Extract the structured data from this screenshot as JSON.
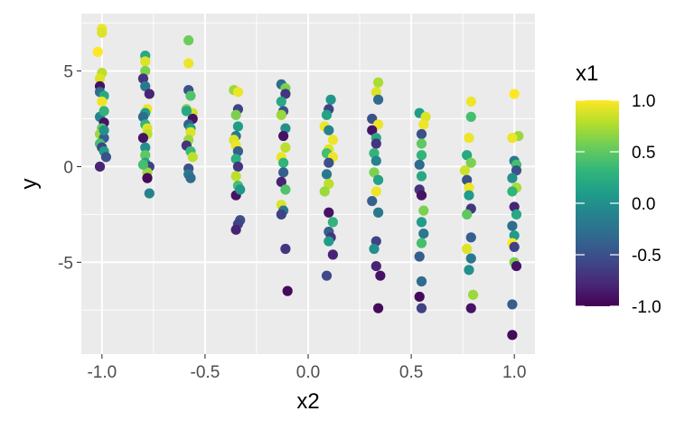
{
  "chart_data": {
    "type": "scatter",
    "xlabel": "x2",
    "ylabel": "y",
    "xlim": [
      -1.1,
      1.1
    ],
    "ylim": [
      -9.8,
      8.0
    ],
    "xticks": [
      -1.0,
      -0.5,
      0.0,
      0.5,
      1.0
    ],
    "xtick_labels": [
      "-1.0",
      "-0.5",
      "0.0",
      "0.5",
      "1.0"
    ],
    "yticks": [
      -5,
      0,
      5
    ],
    "ytick_labels": [
      "-5",
      "0",
      "5"
    ],
    "grid": true,
    "panel_background": "#ebebeb",
    "color_scale": {
      "variable": "x1",
      "palette": "viridis",
      "range": [
        -1.0,
        1.0
      ],
      "breaks": [
        1.0,
        0.5,
        0.0,
        -0.5,
        -1.0
      ],
      "break_labels": [
        "1.0",
        "0.5",
        "0.0",
        "-0.5",
        "-1.0"
      ],
      "legend_position": "right"
    },
    "points": [
      {
        "x": -1.0,
        "y": 7.2,
        "c": 0.95
      },
      {
        "x": -1.0,
        "y": 7.0,
        "c": 0.9
      },
      {
        "x": -1.02,
        "y": 6.0,
        "c": 1.0
      },
      {
        "x": -1.0,
        "y": 4.9,
        "c": 0.8
      },
      {
        "x": -1.01,
        "y": 4.6,
        "c": 0.9
      },
      {
        "x": -1.01,
        "y": 4.2,
        "c": -0.9
      },
      {
        "x": -1.01,
        "y": 3.9,
        "c": -0.3
      },
      {
        "x": -0.99,
        "y": 3.7,
        "c": 0.2
      },
      {
        "x": -1.0,
        "y": 3.4,
        "c": 0.95
      },
      {
        "x": -1.01,
        "y": 2.6,
        "c": -0.1
      },
      {
        "x": -0.99,
        "y": 2.9,
        "c": 0.3
      },
      {
        "x": -0.99,
        "y": 2.3,
        "c": -0.9
      },
      {
        "x": -1.0,
        "y": 2.0,
        "c": 0.5
      },
      {
        "x": -1.01,
        "y": 1.7,
        "c": 0.7
      },
      {
        "x": -0.99,
        "y": 1.5,
        "c": -0.4
      },
      {
        "x": -1.01,
        "y": 1.2,
        "c": 0.4
      },
      {
        "x": -1.0,
        "y": 1.0,
        "c": -0.6
      },
      {
        "x": -0.99,
        "y": 0.8,
        "c": 0.1
      },
      {
        "x": -0.98,
        "y": 0.5,
        "c": -0.5
      },
      {
        "x": -1.01,
        "y": 0.0,
        "c": -0.8
      },
      {
        "x": -0.99,
        "y": 1.9,
        "c": 0.0
      },
      {
        "x": -0.79,
        "y": 5.8,
        "c": 0.2
      },
      {
        "x": -0.79,
        "y": 5.5,
        "c": 0.9
      },
      {
        "x": -0.79,
        "y": 5.0,
        "c": 0.6
      },
      {
        "x": -0.8,
        "y": 4.6,
        "c": -0.7
      },
      {
        "x": -0.79,
        "y": 4.2,
        "c": -0.2
      },
      {
        "x": -0.77,
        "y": 3.8,
        "c": -0.8
      },
      {
        "x": -0.78,
        "y": 3.0,
        "c": 0.95
      },
      {
        "x": -0.79,
        "y": 2.8,
        "c": 0.1
      },
      {
        "x": -0.8,
        "y": 2.6,
        "c": -0.3
      },
      {
        "x": -0.79,
        "y": 2.2,
        "c": 0.3
      },
      {
        "x": -0.78,
        "y": 2.0,
        "c": 0.9
      },
      {
        "x": -0.78,
        "y": 1.7,
        "c": 0.8
      },
      {
        "x": -0.8,
        "y": 1.5,
        "c": -0.9
      },
      {
        "x": -0.79,
        "y": 1.0,
        "c": 0.0
      },
      {
        "x": -0.79,
        "y": 0.6,
        "c": 0.5
      },
      {
        "x": -0.79,
        "y": 0.2,
        "c": 0.15
      },
      {
        "x": -0.77,
        "y": 0.0,
        "c": -0.6
      },
      {
        "x": -0.78,
        "y": -0.3,
        "c": 0.7
      },
      {
        "x": -0.78,
        "y": -0.6,
        "c": -0.95
      },
      {
        "x": -0.77,
        "y": -1.4,
        "c": -0.1
      },
      {
        "x": -0.8,
        "y": 0.1,
        "c": 0.4
      },
      {
        "x": -0.58,
        "y": 6.6,
        "c": 0.55
      },
      {
        "x": -0.58,
        "y": 5.4,
        "c": 0.95
      },
      {
        "x": -0.58,
        "y": 4.0,
        "c": -0.5
      },
      {
        "x": -0.57,
        "y": 3.7,
        "c": 0.45
      },
      {
        "x": -0.59,
        "y": 3.0,
        "c": 0.6
      },
      {
        "x": -0.56,
        "y": 2.8,
        "c": 0.85
      },
      {
        "x": -0.56,
        "y": 2.5,
        "c": -0.9
      },
      {
        "x": -0.58,
        "y": 2.2,
        "c": -0.4
      },
      {
        "x": -0.57,
        "y": 2.0,
        "c": 0.1
      },
      {
        "x": -0.57,
        "y": 1.8,
        "c": 0.9
      },
      {
        "x": -0.58,
        "y": 1.4,
        "c": 0.7
      },
      {
        "x": -0.59,
        "y": 1.1,
        "c": -0.7
      },
      {
        "x": -0.57,
        "y": 0.8,
        "c": 0.35
      },
      {
        "x": -0.56,
        "y": 0.5,
        "c": 0.8
      },
      {
        "x": -0.58,
        "y": -0.1,
        "c": -0.5
      },
      {
        "x": -0.58,
        "y": -0.4,
        "c": -0.2
      },
      {
        "x": -0.57,
        "y": -0.6,
        "c": -0.3
      },
      {
        "x": -0.59,
        "y": 2.9,
        "c": 0.2
      },
      {
        "x": -0.36,
        "y": 4.0,
        "c": 0.7
      },
      {
        "x": -0.34,
        "y": 3.9,
        "c": 0.95
      },
      {
        "x": -0.34,
        "y": 3.0,
        "c": -0.6
      },
      {
        "x": -0.35,
        "y": 2.7,
        "c": 0.6
      },
      {
        "x": -0.34,
        "y": 2.1,
        "c": 0.1
      },
      {
        "x": -0.35,
        "y": 1.6,
        "c": -0.2
      },
      {
        "x": -0.36,
        "y": 1.4,
        "c": 0.9
      },
      {
        "x": -0.35,
        "y": 1.1,
        "c": 0.95
      },
      {
        "x": -0.34,
        "y": 0.8,
        "c": -0.4
      },
      {
        "x": -0.35,
        "y": 0.4,
        "c": 0.25
      },
      {
        "x": -0.34,
        "y": 0.0,
        "c": -0.7
      },
      {
        "x": -0.35,
        "y": -0.5,
        "c": 0.8
      },
      {
        "x": -0.34,
        "y": -1.0,
        "c": 0.4
      },
      {
        "x": -0.35,
        "y": -1.5,
        "c": -0.9
      },
      {
        "x": -0.33,
        "y": -1.2,
        "c": 0.05
      },
      {
        "x": -0.33,
        "y": -2.8,
        "c": -0.5
      },
      {
        "x": -0.34,
        "y": -3.0,
        "c": -0.6
      },
      {
        "x": -0.35,
        "y": -3.3,
        "c": -0.8
      },
      {
        "x": -0.13,
        "y": 4.3,
        "c": -0.3
      },
      {
        "x": -0.11,
        "y": 4.1,
        "c": 0.6
      },
      {
        "x": -0.11,
        "y": 3.8,
        "c": -0.7
      },
      {
        "x": -0.13,
        "y": 3.4,
        "c": 0.2
      },
      {
        "x": -0.12,
        "y": 2.9,
        "c": -0.5
      },
      {
        "x": -0.13,
        "y": 2.7,
        "c": 0.7
      },
      {
        "x": -0.11,
        "y": 2.0,
        "c": 0.0
      },
      {
        "x": -0.12,
        "y": 1.6,
        "c": -0.9
      },
      {
        "x": -0.11,
        "y": 1.0,
        "c": 0.8
      },
      {
        "x": -0.13,
        "y": 0.5,
        "c": 0.95
      },
      {
        "x": -0.12,
        "y": 0.2,
        "c": 0.3
      },
      {
        "x": -0.12,
        "y": -0.3,
        "c": -0.4
      },
      {
        "x": -0.13,
        "y": -0.8,
        "c": -0.8
      },
      {
        "x": -0.11,
        "y": -1.2,
        "c": 0.45
      },
      {
        "x": -0.13,
        "y": -2.0,
        "c": 0.9
      },
      {
        "x": -0.12,
        "y": -2.3,
        "c": -0.2
      },
      {
        "x": -0.13,
        "y": -2.5,
        "c": -0.6
      },
      {
        "x": -0.11,
        "y": -4.3,
        "c": -0.7
      },
      {
        "x": -0.1,
        "y": -6.5,
        "c": -0.95
      },
      {
        "x": 0.11,
        "y": 3.5,
        "c": 0.05
      },
      {
        "x": 0.1,
        "y": 3.0,
        "c": -0.6
      },
      {
        "x": 0.09,
        "y": 2.7,
        "c": 0.15
      },
      {
        "x": 0.08,
        "y": 2.1,
        "c": 0.95
      },
      {
        "x": 0.1,
        "y": 1.9,
        "c": -0.1
      },
      {
        "x": 0.12,
        "y": 1.4,
        "c": 0.95
      },
      {
        "x": 0.1,
        "y": 0.9,
        "c": 0.9
      },
      {
        "x": 0.09,
        "y": 0.7,
        "c": 0.4
      },
      {
        "x": 0.12,
        "y": 0.5,
        "c": 0.95
      },
      {
        "x": 0.1,
        "y": 0.2,
        "c": -0.5
      },
      {
        "x": 0.09,
        "y": -0.4,
        "c": -0.2
      },
      {
        "x": 0.1,
        "y": -0.9,
        "c": 0.8
      },
      {
        "x": 0.08,
        "y": -1.3,
        "c": 0.7
      },
      {
        "x": 0.1,
        "y": -2.4,
        "c": -0.9
      },
      {
        "x": 0.12,
        "y": -2.9,
        "c": 0.3
      },
      {
        "x": 0.1,
        "y": -3.4,
        "c": -0.4
      },
      {
        "x": 0.11,
        "y": -3.7,
        "c": -0.7
      },
      {
        "x": 0.1,
        "y": -3.9,
        "c": 0.1
      },
      {
        "x": 0.12,
        "y": -4.6,
        "c": -0.8
      },
      {
        "x": 0.09,
        "y": -5.7,
        "c": -0.55
      },
      {
        "x": 0.34,
        "y": 4.4,
        "c": 0.75
      },
      {
        "x": 0.33,
        "y": 3.9,
        "c": 0.9
      },
      {
        "x": 0.34,
        "y": 3.5,
        "c": -0.3
      },
      {
        "x": 0.31,
        "y": 2.5,
        "c": -0.5
      },
      {
        "x": 0.34,
        "y": 2.2,
        "c": 0.95
      },
      {
        "x": 0.31,
        "y": 1.9,
        "c": -0.9
      },
      {
        "x": 0.33,
        "y": 1.5,
        "c": 0.2
      },
      {
        "x": 0.33,
        "y": 1.2,
        "c": -0.7
      },
      {
        "x": 0.32,
        "y": 0.7,
        "c": 0.3
      },
      {
        "x": 0.33,
        "y": 0.3,
        "c": -0.1
      },
      {
        "x": 0.32,
        "y": -0.3,
        "c": 0.6
      },
      {
        "x": 0.34,
        "y": -0.7,
        "c": 0.15
      },
      {
        "x": 0.33,
        "y": -1.3,
        "c": 0.95
      },
      {
        "x": 0.31,
        "y": -1.8,
        "c": -0.4
      },
      {
        "x": 0.34,
        "y": -2.4,
        "c": -0.2
      },
      {
        "x": 0.33,
        "y": -3.9,
        "c": -0.6
      },
      {
        "x": 0.32,
        "y": -4.3,
        "c": 0.0
      },
      {
        "x": 0.33,
        "y": -5.2,
        "c": -0.8
      },
      {
        "x": 0.35,
        "y": -5.7,
        "c": -0.9
      },
      {
        "x": 0.34,
        "y": -7.4,
        "c": -0.95
      },
      {
        "x": 0.54,
        "y": 2.8,
        "c": 0.1
      },
      {
        "x": 0.57,
        "y": 2.6,
        "c": 0.9
      },
      {
        "x": 0.56,
        "y": 2.2,
        "c": 0.95
      },
      {
        "x": 0.55,
        "y": 1.7,
        "c": -0.5
      },
      {
        "x": 0.55,
        "y": 1.2,
        "c": 0.5
      },
      {
        "x": 0.55,
        "y": 0.6,
        "c": 0.3
      },
      {
        "x": 0.54,
        "y": 0.1,
        "c": -0.3
      },
      {
        "x": 0.55,
        "y": -0.5,
        "c": 0.2
      },
      {
        "x": 0.54,
        "y": -1.2,
        "c": -0.7
      },
      {
        "x": 0.55,
        "y": -1.5,
        "c": -0.9
      },
      {
        "x": 0.56,
        "y": -2.3,
        "c": 0.6
      },
      {
        "x": 0.55,
        "y": -2.9,
        "c": 0.1
      },
      {
        "x": 0.56,
        "y": -3.5,
        "c": -0.2
      },
      {
        "x": 0.55,
        "y": -4.0,
        "c": 0.4
      },
      {
        "x": 0.54,
        "y": -4.7,
        "c": -0.4
      },
      {
        "x": 0.55,
        "y": -6.0,
        "c": -0.3
      },
      {
        "x": 0.54,
        "y": -6.8,
        "c": -0.95
      },
      {
        "x": 0.55,
        "y": -7.4,
        "c": -0.6
      },
      {
        "x": 0.79,
        "y": 3.4,
        "c": 0.95
      },
      {
        "x": 0.79,
        "y": 2.6,
        "c": 0.4
      },
      {
        "x": 0.78,
        "y": 1.5,
        "c": 0.95
      },
      {
        "x": 0.77,
        "y": 0.6,
        "c": 0.2
      },
      {
        "x": 0.79,
        "y": 0.2,
        "c": 0.6
      },
      {
        "x": 0.76,
        "y": -0.2,
        "c": 0.85
      },
      {
        "x": 0.77,
        "y": -0.7,
        "c": -0.5
      },
      {
        "x": 0.78,
        "y": -1.1,
        "c": 0.95
      },
      {
        "x": 0.78,
        "y": -1.5,
        "c": 0.1
      },
      {
        "x": 0.79,
        "y": -2.2,
        "c": -0.7
      },
      {
        "x": 0.77,
        "y": -2.5,
        "c": 0.5
      },
      {
        "x": 0.79,
        "y": -3.7,
        "c": -0.4
      },
      {
        "x": 0.77,
        "y": -4.3,
        "c": 0.9
      },
      {
        "x": 0.79,
        "y": -4.8,
        "c": -0.2
      },
      {
        "x": 0.78,
        "y": -5.4,
        "c": 0.0
      },
      {
        "x": 0.8,
        "y": -6.7,
        "c": 0.7
      },
      {
        "x": 0.79,
        "y": -7.4,
        "c": -0.9
      },
      {
        "x": 1.0,
        "y": 3.8,
        "c": 1.0
      },
      {
        "x": 1.02,
        "y": 1.6,
        "c": 0.7
      },
      {
        "x": 0.99,
        "y": 1.5,
        "c": 0.95
      },
      {
        "x": 1.0,
        "y": 0.3,
        "c": -0.2
      },
      {
        "x": 1.01,
        "y": 0.1,
        "c": 0.4
      },
      {
        "x": 1.01,
        "y": -0.2,
        "c": -0.5
      },
      {
        "x": 0.99,
        "y": -0.6,
        "c": 0.0
      },
      {
        "x": 1.01,
        "y": -1.1,
        "c": 0.75
      },
      {
        "x": 0.99,
        "y": -1.3,
        "c": 0.3
      },
      {
        "x": 1.0,
        "y": -2.1,
        "c": -0.8
      },
      {
        "x": 1.01,
        "y": -2.5,
        "c": 0.2
      },
      {
        "x": 0.99,
        "y": -3.1,
        "c": -0.3
      },
      {
        "x": 1.0,
        "y": -3.6,
        "c": 0.1
      },
      {
        "x": 0.99,
        "y": -4.0,
        "c": 1.0
      },
      {
        "x": 1.0,
        "y": -4.2,
        "c": -0.6
      },
      {
        "x": 1.0,
        "y": -5.0,
        "c": 0.6
      },
      {
        "x": 1.01,
        "y": -5.2,
        "c": -0.9
      },
      {
        "x": 0.99,
        "y": -7.2,
        "c": -0.4
      },
      {
        "x": 0.99,
        "y": -8.8,
        "c": -0.95
      }
    ]
  }
}
